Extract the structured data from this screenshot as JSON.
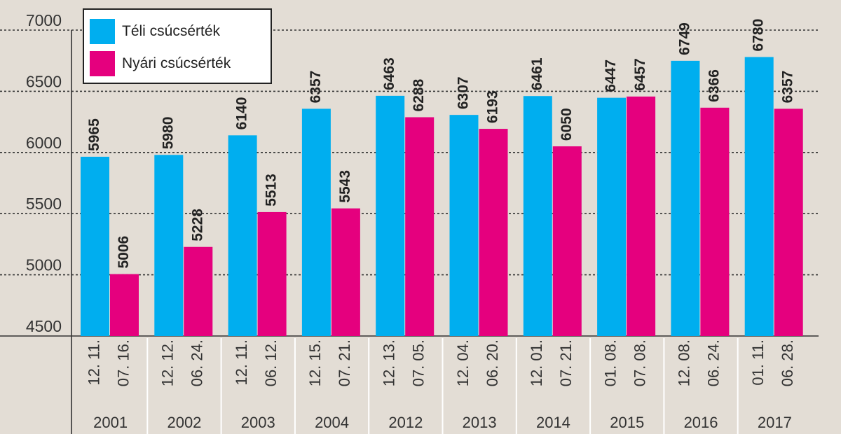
{
  "chart_data": {
    "type": "bar",
    "groups": [
      "2001",
      "2002",
      "2003",
      "2004",
      "2012",
      "2013",
      "2014",
      "2015",
      "2016",
      "2017"
    ],
    "date_labels": [
      [
        "12. 11.",
        "07. 16."
      ],
      [
        "12. 12.",
        "06. 24."
      ],
      [
        "12. 11.",
        "06. 12."
      ],
      [
        "12. 15.",
        "07. 21."
      ],
      [
        "12. 13.",
        "07. 05."
      ],
      [
        "12. 04.",
        "06. 20."
      ],
      [
        "12. 01.",
        "07. 21."
      ],
      [
        "01. 08.",
        "07. 08."
      ],
      [
        "12. 08.",
        "06. 24."
      ],
      [
        "01. 11.",
        "06. 28."
      ]
    ],
    "series": [
      {
        "name": "Téli csúcsérték",
        "color": "#00aeef",
        "values": [
          5965,
          5980,
          6140,
          6357,
          6463,
          6307,
          6461,
          6447,
          6749,
          6780
        ]
      },
      {
        "name": "Nyári csúcsérték",
        "color": "#e5007e",
        "values": [
          5006,
          5228,
          5513,
          5543,
          6288,
          6193,
          6050,
          6457,
          6366,
          6357
        ]
      }
    ],
    "ylim": [
      4500,
      7000
    ],
    "yticks": [
      4500,
      5000,
      5500,
      6000,
      6500,
      7000
    ],
    "grid": true,
    "legend_position": "top-left",
    "title": "",
    "xlabel": "",
    "ylabel": ""
  }
}
